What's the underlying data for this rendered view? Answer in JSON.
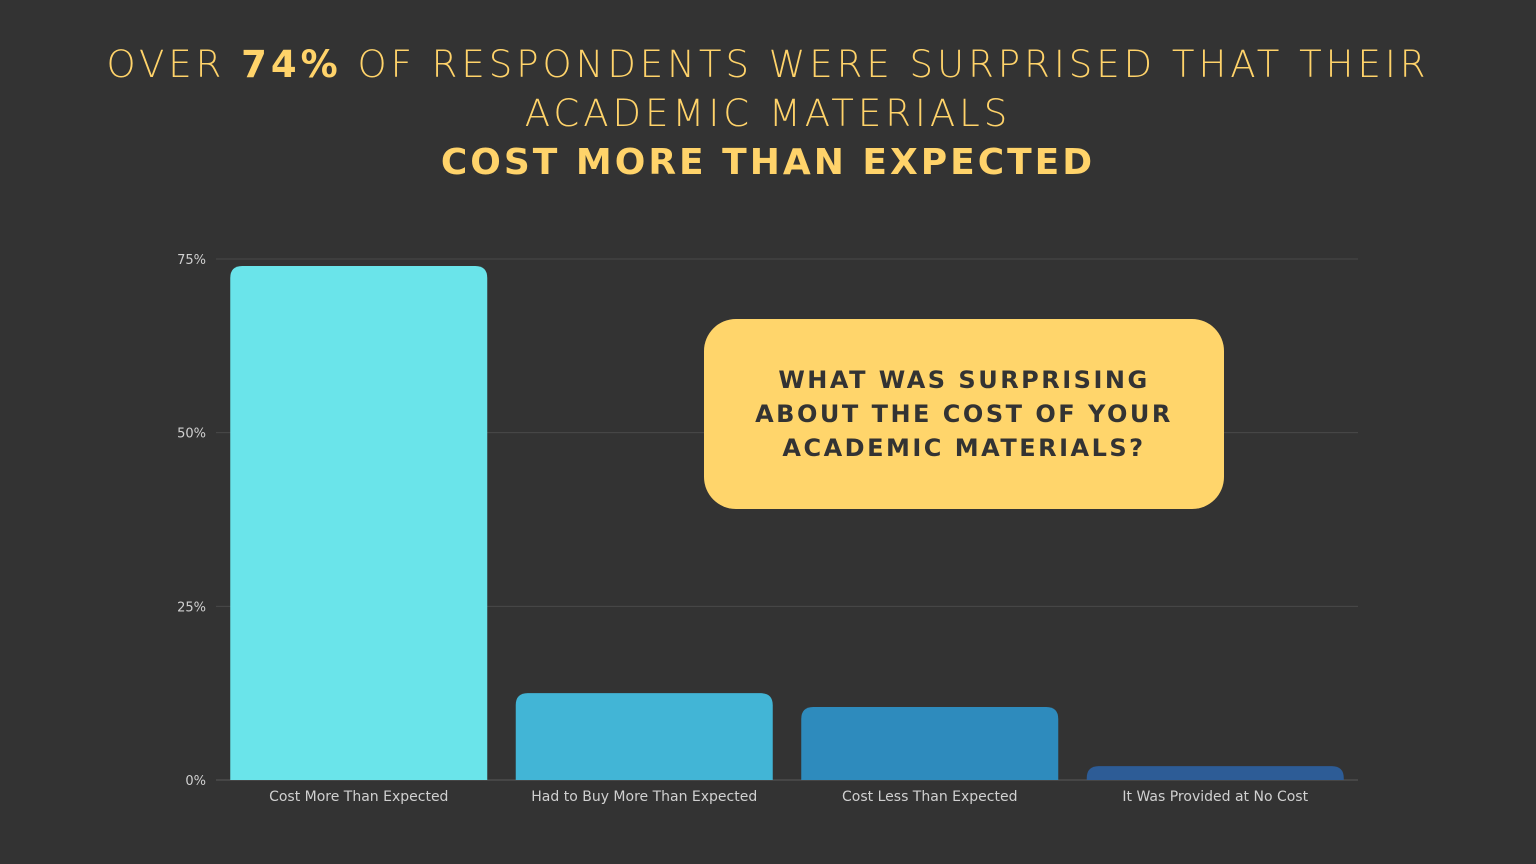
{
  "headline": {
    "prefix": "OVER ",
    "emphasis": "74%",
    "suffix": " OF RESPONDENTS WERE SURPRISED THAT THEIR",
    "line2": "ACADEMIC MATERIALS",
    "line3": "COST MORE THAN EXPECTED"
  },
  "callout": {
    "text": "WHAT WAS SURPRISING ABOUT THE COST OF YOUR ACADEMIC MATERIALS?"
  },
  "colors": {
    "background": "#333333",
    "headline": "#ffd36a",
    "callout_bg": "#ffd56b",
    "callout_text": "#333333",
    "gridline": "#4a4a4a",
    "axis_text": "#d0d0d0",
    "bars": [
      "#6ae4ea",
      "#42b5d6",
      "#2e8bbd",
      "#2d5c96"
    ]
  },
  "chart_data": {
    "type": "bar",
    "title": "",
    "xlabel": "",
    "ylabel": "",
    "categories": [
      "Cost More Than Expected",
      "Had to Buy More Than Expected",
      "Cost Less Than Expected",
      "It Was Provided at No Cost"
    ],
    "values": [
      74,
      12.5,
      10.5,
      2
    ],
    "ylim": [
      0,
      75
    ],
    "yticks": [
      0,
      25,
      50,
      75
    ],
    "ytick_labels": [
      "0%",
      "25%",
      "50%",
      "75%"
    ],
    "grid": true,
    "legend": "none"
  }
}
